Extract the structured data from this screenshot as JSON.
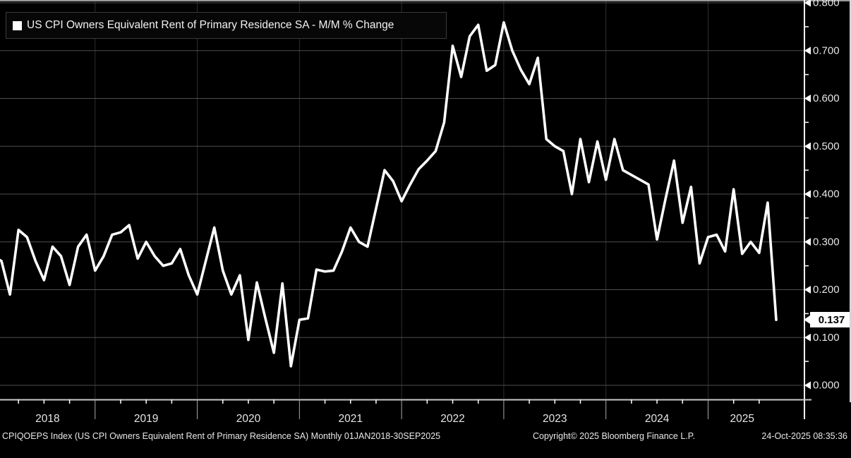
{
  "legend": {
    "label": "US CPI Owners Equivalent Rent of Primary Residence SA - M/M % Change"
  },
  "y_axis": {
    "tick_labels": [
      "0.800",
      "0.700",
      "0.600",
      "0.500",
      "0.400",
      "0.300",
      "0.200",
      "0.100",
      "0.000"
    ],
    "range": [
      0.0,
      0.8
    ],
    "major_step": 0.1,
    "minor_step": 0.05
  },
  "x_axis": {
    "year_labels": [
      "2018",
      "2019",
      "2020",
      "2021",
      "2022",
      "2023",
      "2024",
      "2025"
    ]
  },
  "last_value": {
    "label": "0.137",
    "value": 0.137
  },
  "footer": {
    "left": "CPIQOEPS Index (US CPI Owners Equivalent Rent of Primary Residence SA) Monthly 01JAN2018-30SEP2025",
    "copyright": "Copyright© 2025 Bloomberg Finance L.P.",
    "datetime": "24-Oct-2025 08:35:36"
  },
  "colors": {
    "background": "#000000",
    "line": "#ffffff",
    "grid_h": "#4e4e4e",
    "grid_v": "#2e2e2e",
    "axis": "#ffffff",
    "bottom_axis": "#c8c8c8",
    "top_border": "#999999",
    "label": "#e6e6e6"
  },
  "chart_data": {
    "type": "line",
    "title": "US CPI Owners Equivalent Rent of Primary Residence SA - M/M % Change",
    "ticker": "CPIQOEPS Index",
    "frequency": "monthly",
    "start_month": "2018-01",
    "end_month": "2025-09",
    "ylim": [
      0.0,
      0.8
    ],
    "grid": true,
    "legend_position": "top-left",
    "unit": "% m/m",
    "values": [
      0.27,
      0.26,
      0.19,
      0.325,
      0.31,
      0.26,
      0.22,
      0.29,
      0.27,
      0.21,
      0.29,
      0.315,
      0.24,
      0.27,
      0.315,
      0.32,
      0.335,
      0.265,
      0.3,
      0.27,
      0.25,
      0.255,
      0.285,
      0.23,
      0.19,
      0.26,
      0.33,
      0.24,
      0.19,
      0.23,
      0.095,
      0.215,
      0.14,
      0.068,
      0.213,
      0.04,
      0.137,
      0.14,
      0.242,
      0.238,
      0.24,
      0.28,
      0.33,
      0.3,
      0.29,
      0.37,
      0.45,
      0.427,
      0.385,
      0.42,
      0.452,
      0.47,
      0.49,
      0.55,
      0.71,
      0.645,
      0.73,
      0.754,
      0.658,
      0.67,
      0.759,
      0.7,
      0.66,
      0.63,
      0.685,
      0.515,
      0.5,
      0.49,
      0.4,
      0.515,
      0.425,
      0.51,
      0.43,
      0.515,
      0.45,
      0.44,
      0.43,
      0.42,
      0.305,
      0.39,
      0.47,
      0.34,
      0.415,
      0.255,
      0.31,
      0.315,
      0.28,
      0.41,
      0.275,
      0.3,
      0.277,
      0.382,
      0.137
    ]
  }
}
